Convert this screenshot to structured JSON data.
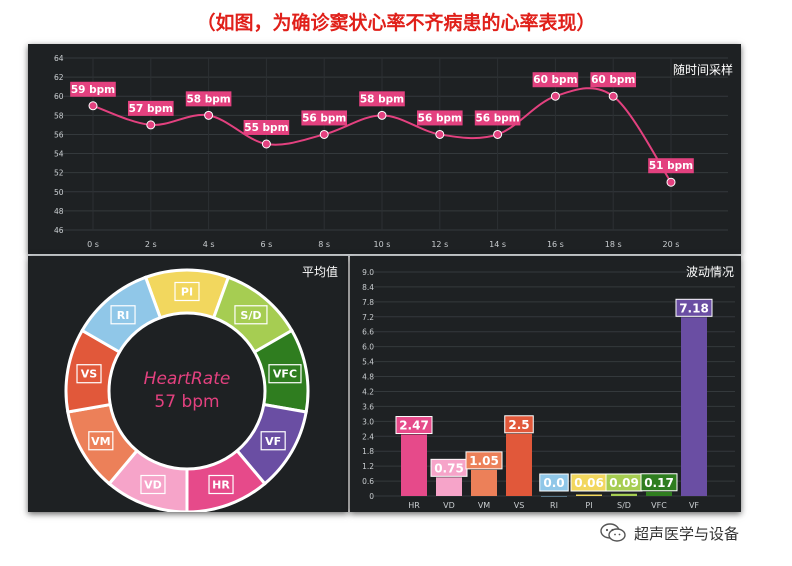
{
  "title": "（如图，为确诊窦状心率不齐病患的心率表现）",
  "footer": {
    "brand": "超声医学与设备",
    "icon": "wechat-icon"
  },
  "colors": {
    "pink": "#e3417f",
    "panel": "#1e2123",
    "grid": "#3a3f42",
    "title_red": "#e0201a"
  },
  "chart_data": [
    {
      "type": "line",
      "title": "随时间采样",
      "x": [
        "0 s",
        "2 s",
        "4 s",
        "6 s",
        "8 s",
        "10 s",
        "12 s",
        "14 s",
        "16 s",
        "18 s",
        "20 s"
      ],
      "values": [
        59,
        57,
        58,
        55,
        56,
        58,
        56,
        56,
        60,
        60,
        51
      ],
      "point_labels": [
        "59 bpm",
        "57 bpm",
        "58 bpm",
        "55 bpm",
        "56 bpm",
        "58 bpm",
        "56 bpm",
        "56 bpm",
        "60 bpm",
        "60 bpm",
        "51 bpm"
      ],
      "ylim": [
        46,
        64
      ],
      "yticks": [
        46,
        48,
        50,
        52,
        54,
        56,
        58,
        60,
        62,
        64
      ],
      "color": "#e3417f",
      "grid": true
    },
    {
      "type": "pie",
      "title": "平均值",
      "center_title": "HeartRate",
      "center_value": "57 bpm",
      "segments": [
        {
          "label": "PI",
          "color": "#f2d75e"
        },
        {
          "label": "S/D",
          "color": "#a6cd52"
        },
        {
          "label": "VFC",
          "color": "#2f7d1f"
        },
        {
          "label": "VF",
          "color": "#6a4ea3"
        },
        {
          "label": "HR",
          "color": "#e64a8a"
        },
        {
          "label": "VD",
          "color": "#f6a4c9"
        },
        {
          "label": "VM",
          "color": "#ec8059"
        },
        {
          "label": "VS",
          "color": "#e1583a"
        },
        {
          "label": "RI",
          "color": "#90c7e8"
        }
      ]
    },
    {
      "type": "bar",
      "title": "波动情况",
      "categories": [
        "HR",
        "VD",
        "VM",
        "VS",
        "RI",
        "PI",
        "S/D",
        "VFC",
        "VF"
      ],
      "values": [
        2.47,
        0.75,
        1.05,
        2.5,
        0.0,
        0.06,
        0.09,
        0.17,
        7.18
      ],
      "value_labels": [
        "2.47",
        "0.75",
        "1.05",
        "2.5",
        "0.0",
        "0.06",
        "0.09",
        "0.17",
        "7.18"
      ],
      "colors": [
        "#e64a8a",
        "#f6a4c9",
        "#ec8059",
        "#e1583a",
        "#90c7e8",
        "#f2d75e",
        "#a6cd52",
        "#2f7d1f",
        "#6a4ea3"
      ],
      "ylim": [
        0,
        9.0
      ],
      "yticks": [
        "0",
        "0.6",
        "1.2",
        "1.8",
        "2.4",
        "3.0",
        "3.6",
        "4.2",
        "4.8",
        "5.4",
        "6.0",
        "6.6",
        "7.2",
        "7.8",
        "8.4",
        "9.0"
      ],
      "grid": true
    }
  ]
}
